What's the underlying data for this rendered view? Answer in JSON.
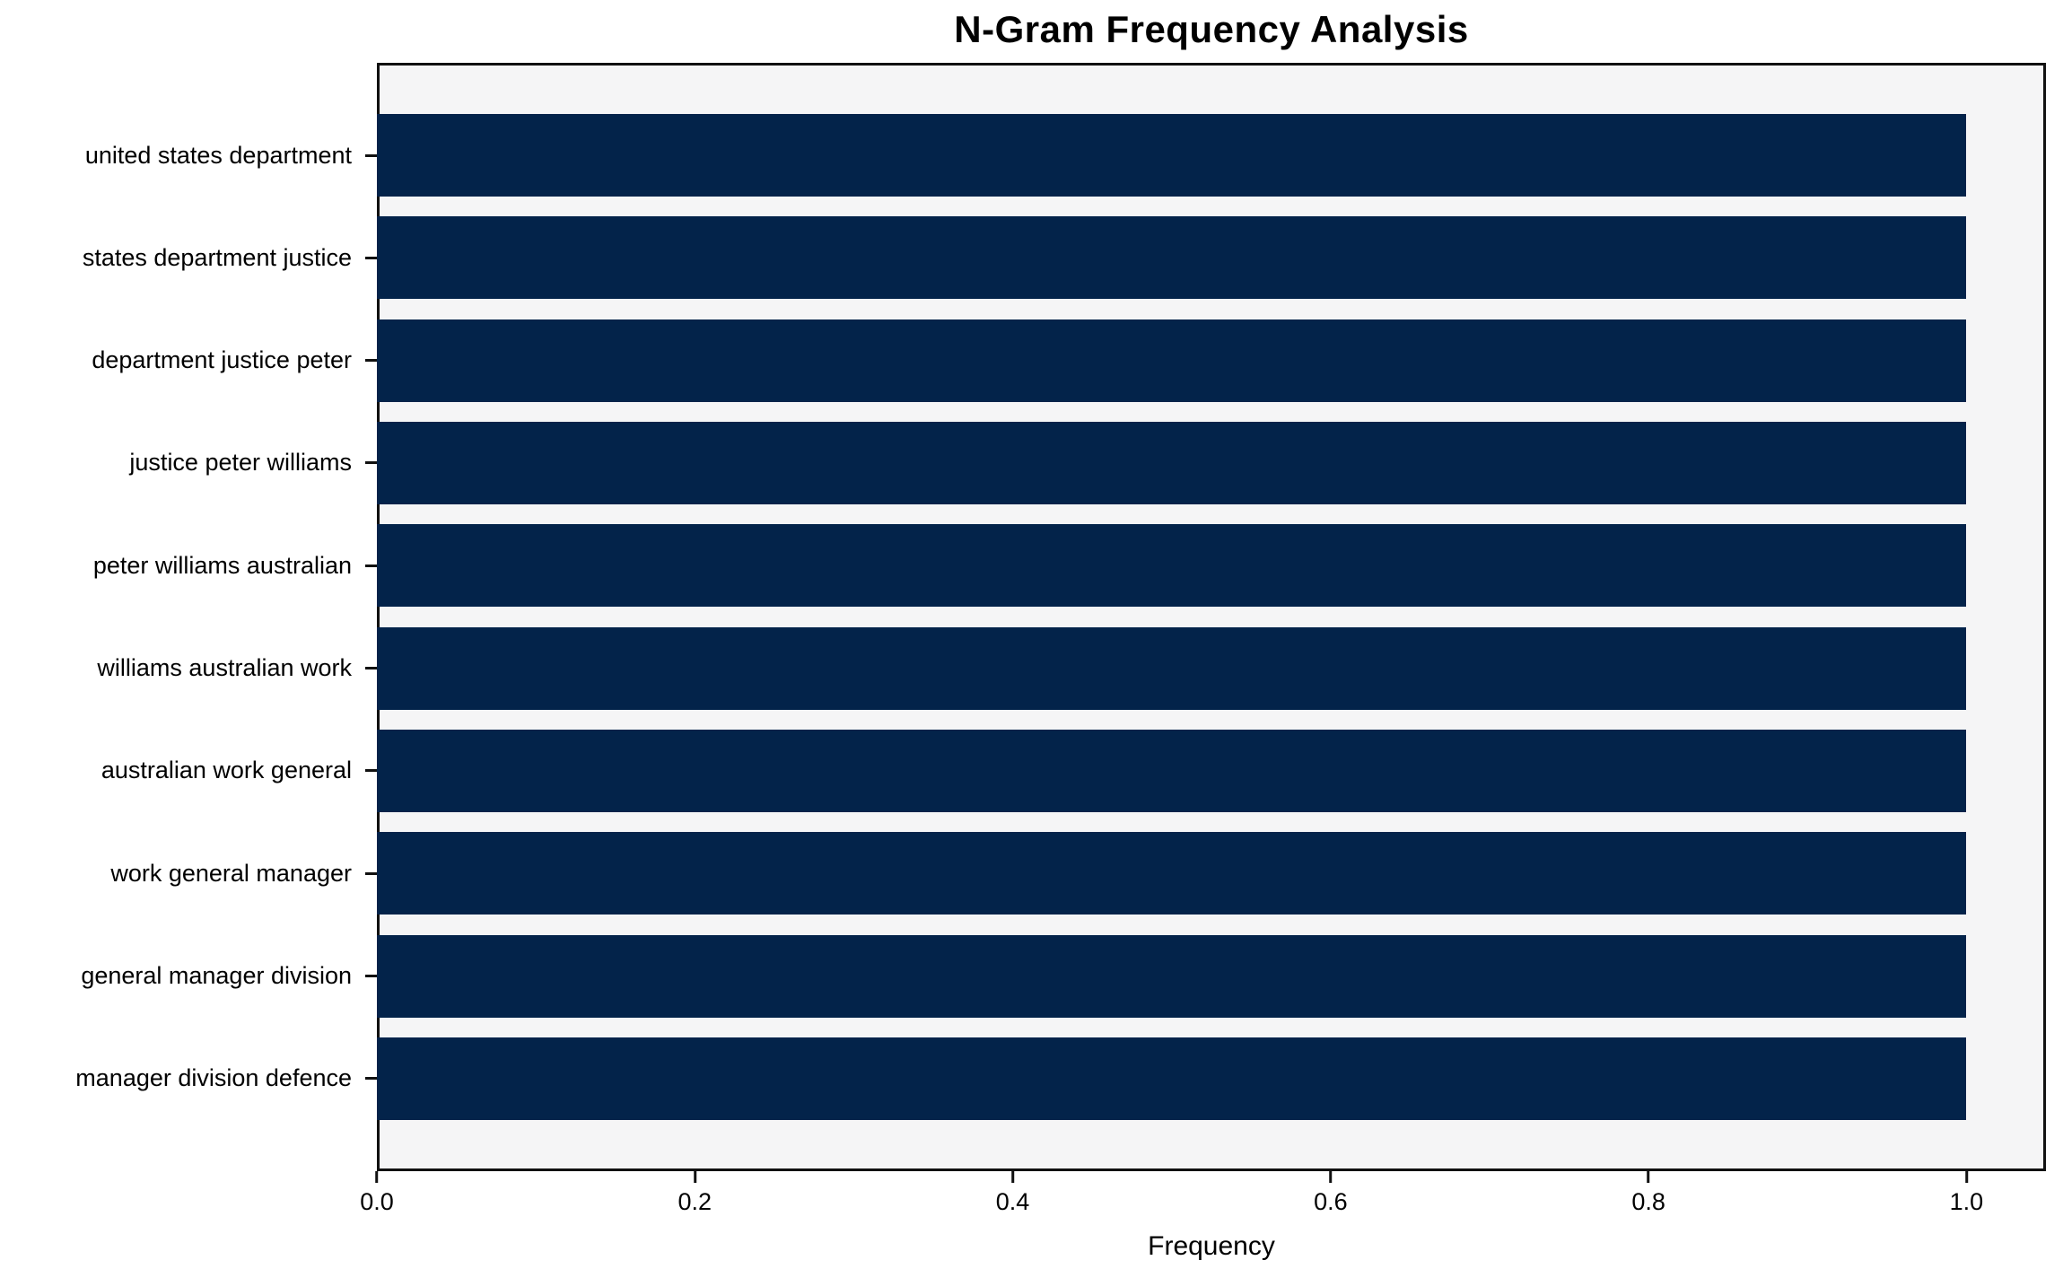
{
  "chart_data": {
    "type": "bar",
    "orientation": "horizontal",
    "title": "N-Gram Frequency Analysis",
    "xlabel": "Frequency",
    "ylabel": "",
    "categories": [
      "united states department",
      "states department justice",
      "department justice peter",
      "justice peter williams",
      "peter williams australian",
      "williams australian work",
      "australian work general",
      "work general manager",
      "general manager division",
      "manager division defence"
    ],
    "values": [
      1.0,
      1.0,
      1.0,
      1.0,
      1.0,
      1.0,
      1.0,
      1.0,
      1.0,
      1.0
    ],
    "xlim": [
      0.0,
      1.05
    ],
    "xticks": [
      0.0,
      0.2,
      0.4,
      0.6,
      0.8,
      1.0
    ],
    "xtick_labels": [
      "0.0",
      "0.2",
      "0.4",
      "0.6",
      "0.8",
      "1.0"
    ],
    "grid": false,
    "legend": null,
    "colors": {
      "bar": "#03234a",
      "plot_background": "#f5f5f6",
      "figure_background": "#ffffff",
      "spine": "#111111",
      "text": "#000000"
    }
  }
}
